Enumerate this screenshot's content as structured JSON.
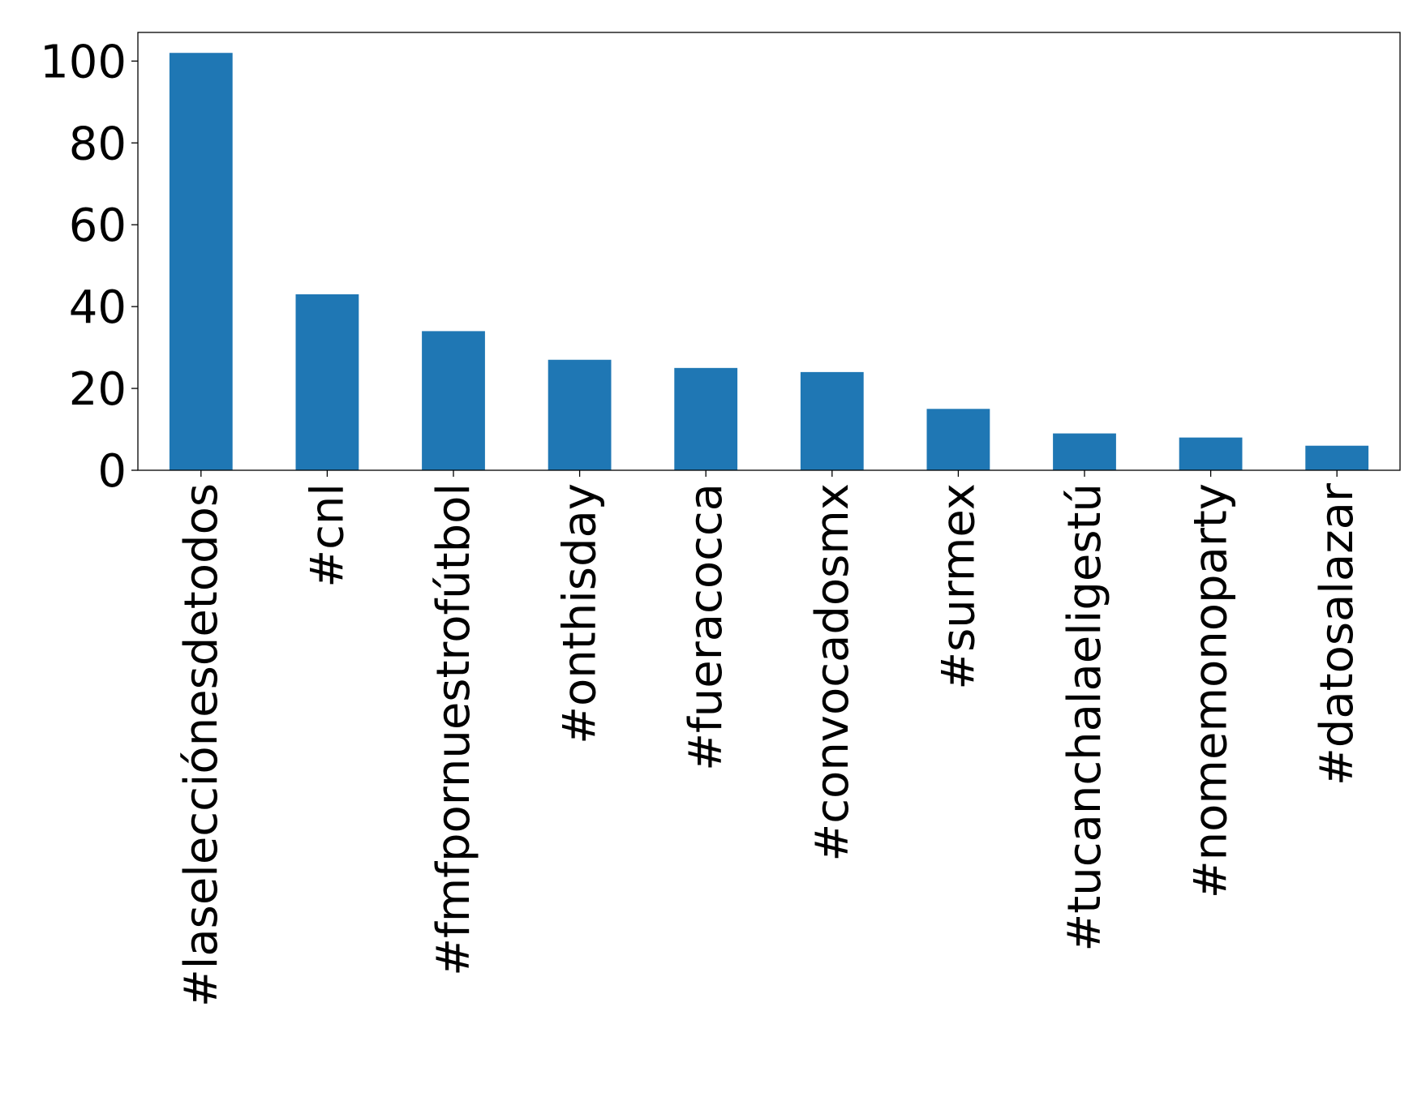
{
  "chart_data": {
    "type": "bar",
    "title": "",
    "xlabel": "",
    "ylabel": "",
    "categories": [
      "#laselecciónesdetodos",
      "#cnl",
      "#fmfpornuestrofútbol",
      "#onthisday",
      "#fueracocca",
      "#convocadosmx",
      "#surmex",
      "#tucanchalaeligestú",
      "#nomemonoparty",
      "#datosalazar"
    ],
    "values": [
      102,
      43,
      34,
      27,
      25,
      24,
      15,
      9,
      8,
      6
    ],
    "ylim": [
      0,
      107
    ],
    "yticks": [
      0,
      20,
      40,
      60,
      80,
      100
    ],
    "ytick_labels": [
      "0",
      "20",
      "40",
      "60",
      "80",
      "100"
    ],
    "grid": false,
    "legend": "none",
    "bar_color": "#1f77b4",
    "x_tick_rotation_deg": -90
  }
}
